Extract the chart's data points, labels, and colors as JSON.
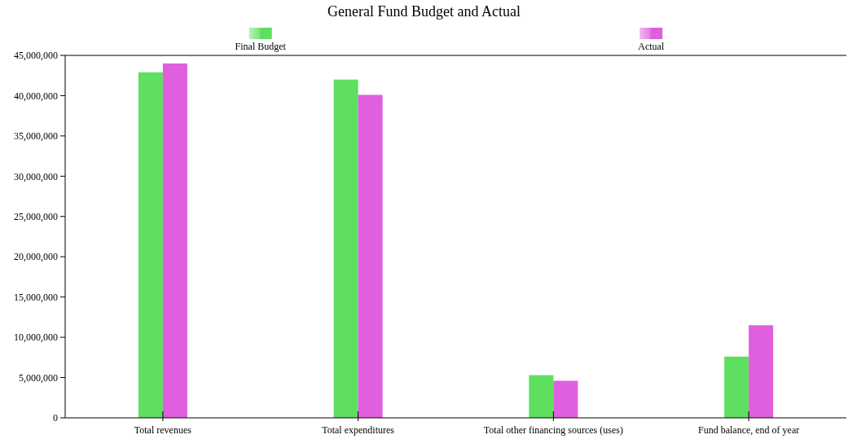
{
  "chart_data": {
    "type": "bar",
    "title": "General Fund Budget and Actual",
    "categories": [
      "Total revenues",
      "Total expenditures",
      "Total other financing sources (uses)",
      "Fund balance, end of year"
    ],
    "series": [
      {
        "name": "Final Budget",
        "color": "#5fdf5f",
        "values": [
          42900000,
          42000000,
          5300000,
          7600000
        ]
      },
      {
        "name": "Actual",
        "color": "#df5fdf",
        "values": [
          44000000,
          40100000,
          4600000,
          11500000
        ]
      }
    ],
    "ylim": [
      0,
      45000000
    ],
    "yticks": [
      {
        "value": 0,
        "label": "0"
      },
      {
        "value": 5000000,
        "label": "5,000,000"
      },
      {
        "value": 10000000,
        "label": "10,000,000"
      },
      {
        "value": 15000000,
        "label": "15,000,000"
      },
      {
        "value": 20000000,
        "label": "20,000,000"
      },
      {
        "value": 25000000,
        "label": "25,000,000"
      },
      {
        "value": 30000000,
        "label": "30,000,000"
      },
      {
        "value": 35000000,
        "label": "35,000,000"
      },
      {
        "value": 40000000,
        "label": "40,000,000"
      },
      {
        "value": 45000000,
        "label": "45,000,000"
      }
    ],
    "legend": "top",
    "grid": false
  }
}
